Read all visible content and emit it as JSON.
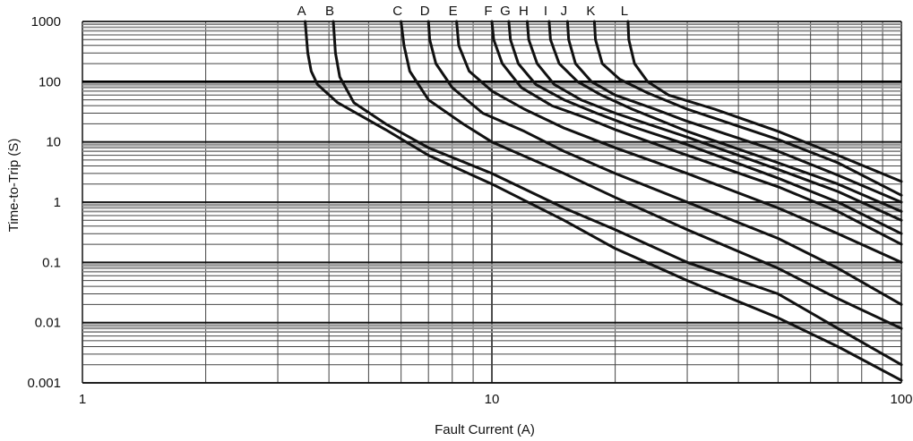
{
  "chart_data": {
    "type": "line",
    "title": "",
    "xlabel": "Fault Current (A)",
    "ylabel": "Time-to-Trip (S)",
    "x_scale": "log",
    "y_scale": "log",
    "xlim": [
      1,
      100
    ],
    "ylim": [
      0.001,
      1000
    ],
    "grid": true,
    "x_tick_labels": [
      "1",
      "10",
      "100"
    ],
    "x_tick_values": [
      1,
      10,
      100
    ],
    "y_tick_labels": [
      "0.001",
      "0.01",
      "0.1",
      "1",
      "10",
      "100",
      "1000"
    ],
    "y_tick_values": [
      0.001,
      0.01,
      0.1,
      1,
      10,
      100,
      1000
    ],
    "series": [
      {
        "name": "A",
        "points": [
          [
            3.5,
            1000
          ],
          [
            3.55,
            300
          ],
          [
            3.62,
            150
          ],
          [
            3.75,
            90
          ],
          [
            4.2,
            45
          ],
          [
            5.5,
            16
          ],
          [
            7,
            6
          ],
          [
            10,
            2
          ],
          [
            15,
            0.5
          ],
          [
            20,
            0.17
          ],
          [
            30,
            0.05
          ],
          [
            50,
            0.012
          ],
          [
            70,
            0.004
          ],
          [
            100,
            0.0011
          ]
        ]
      },
      {
        "name": "B",
        "points": [
          [
            4.1,
            1000
          ],
          [
            4.15,
            300
          ],
          [
            4.25,
            120
          ],
          [
            4.6,
            45
          ],
          [
            5.5,
            20
          ],
          [
            7,
            8
          ],
          [
            10,
            3
          ],
          [
            15,
            0.8
          ],
          [
            20,
            0.35
          ],
          [
            30,
            0.1
          ],
          [
            50,
            0.03
          ],
          [
            70,
            0.008
          ],
          [
            100,
            0.002
          ]
        ]
      },
      {
        "name": "C",
        "points": [
          [
            6.0,
            1000
          ],
          [
            6.1,
            400
          ],
          [
            6.3,
            150
          ],
          [
            7,
            50
          ],
          [
            8.5,
            20
          ],
          [
            10,
            10
          ],
          [
            15,
            3
          ],
          [
            20,
            1.2
          ],
          [
            30,
            0.35
          ],
          [
            50,
            0.08
          ],
          [
            70,
            0.025
          ],
          [
            100,
            0.008
          ]
        ]
      },
      {
        "name": "D",
        "points": [
          [
            7.0,
            1000
          ],
          [
            7.05,
            500
          ],
          [
            7.3,
            200
          ],
          [
            8,
            80
          ],
          [
            9.5,
            30
          ],
          [
            12,
            15
          ],
          [
            15,
            7
          ],
          [
            20,
            3
          ],
          [
            30,
            1
          ],
          [
            50,
            0.25
          ],
          [
            70,
            0.08
          ],
          [
            100,
            0.02
          ]
        ]
      },
      {
        "name": "E",
        "points": [
          [
            8.2,
            1000
          ],
          [
            8.3,
            400
          ],
          [
            8.8,
            150
          ],
          [
            10,
            70
          ],
          [
            12,
            35
          ],
          [
            15,
            17
          ],
          [
            20,
            8
          ],
          [
            30,
            3
          ],
          [
            50,
            0.8
          ],
          [
            70,
            0.3
          ],
          [
            100,
            0.1
          ]
        ]
      },
      {
        "name": "F",
        "points": [
          [
            10.0,
            1000
          ],
          [
            10.1,
            500
          ],
          [
            10.6,
            200
          ],
          [
            11.8,
            80
          ],
          [
            14,
            40
          ],
          [
            17,
            25
          ],
          [
            20,
            16
          ],
          [
            30,
            6
          ],
          [
            50,
            1.8
          ],
          [
            70,
            0.7
          ],
          [
            100,
            0.2
          ]
        ]
      },
      {
        "name": "G",
        "points": [
          [
            11.0,
            1000
          ],
          [
            11.1,
            500
          ],
          [
            11.6,
            200
          ],
          [
            12.8,
            90
          ],
          [
            15,
            50
          ],
          [
            18,
            30
          ],
          [
            22,
            18
          ],
          [
            30,
            9
          ],
          [
            50,
            2.5
          ],
          [
            70,
            1
          ],
          [
            100,
            0.3
          ]
        ]
      },
      {
        "name": "H",
        "points": [
          [
            12.2,
            1000
          ],
          [
            12.3,
            500
          ],
          [
            12.9,
            200
          ],
          [
            14.2,
            90
          ],
          [
            16.5,
            50
          ],
          [
            20,
            30
          ],
          [
            30,
            12
          ],
          [
            50,
            3.5
          ],
          [
            70,
            1.5
          ],
          [
            100,
            0.5
          ]
        ]
      },
      {
        "name": "I",
        "points": [
          [
            13.8,
            1000
          ],
          [
            13.9,
            500
          ],
          [
            14.6,
            200
          ],
          [
            16.2,
            100
          ],
          [
            18.5,
            60
          ],
          [
            22,
            35
          ],
          [
            30,
            15
          ],
          [
            50,
            4.5
          ],
          [
            70,
            2
          ],
          [
            100,
            0.7
          ]
        ]
      },
      {
        "name": "J",
        "points": [
          [
            15.3,
            1000
          ],
          [
            15.4,
            500
          ],
          [
            16,
            200
          ],
          [
            17.5,
            100
          ],
          [
            20,
            60
          ],
          [
            25,
            35
          ],
          [
            30,
            22
          ],
          [
            50,
            7
          ],
          [
            70,
            2.8
          ],
          [
            100,
            1
          ]
        ]
      },
      {
        "name": "K",
        "points": [
          [
            17.8,
            1000
          ],
          [
            17.9,
            500
          ],
          [
            18.6,
            200
          ],
          [
            20.5,
            110
          ],
          [
            24,
            65
          ],
          [
            30,
            35
          ],
          [
            50,
            11
          ],
          [
            70,
            4.5
          ],
          [
            100,
            1.3
          ]
        ]
      },
      {
        "name": "L",
        "points": [
          [
            21.5,
            1000
          ],
          [
            21.6,
            500
          ],
          [
            22.3,
            200
          ],
          [
            24,
            100
          ],
          [
            27,
            60
          ],
          [
            35,
            35
          ],
          [
            50,
            15
          ],
          [
            70,
            6
          ],
          [
            100,
            2.2
          ]
        ]
      }
    ]
  }
}
